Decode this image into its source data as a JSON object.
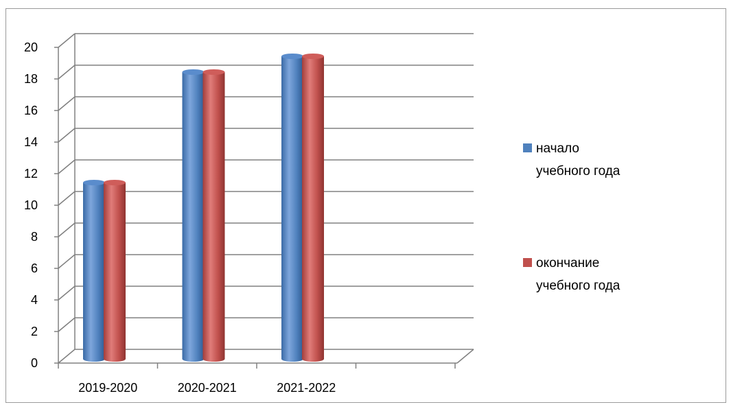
{
  "chart_data": {
    "type": "bar",
    "title": "",
    "xlabel": "",
    "ylabel": "",
    "categories": [
      "2019-2020",
      "2020-2021",
      "2021-2022",
      ""
    ],
    "series": [
      {
        "name": "начало учебного года",
        "name_lines": [
          "начало",
          "учебного года"
        ],
        "color": "#4f81bd",
        "values": [
          11,
          18,
          19,
          null
        ]
      },
      {
        "name": "окончание учебного года",
        "name_lines": [
          "окончание",
          "учебного года"
        ],
        "color": "#c0504d",
        "values": [
          11,
          18,
          19,
          null
        ]
      }
    ],
    "y_ticks": [
      0,
      2,
      4,
      6,
      8,
      10,
      12,
      14,
      16,
      18,
      20
    ],
    "ylim": [
      0,
      20
    ],
    "grid": true,
    "legend_position": "right",
    "style": "3d-cylinder"
  }
}
